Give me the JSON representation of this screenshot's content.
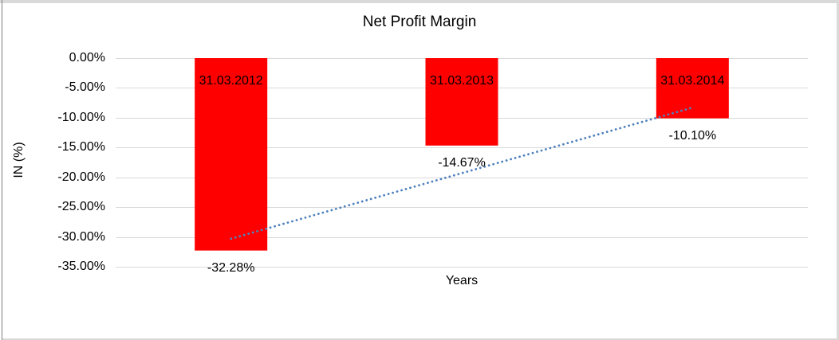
{
  "window": {
    "background": "#ffffff",
    "edge_light": "#d9d9d9",
    "edge_dark": "#7f7f7f"
  },
  "chart_data": {
    "type": "bar",
    "title": "Net Profit Margin",
    "xlabel": "Years",
    "ylabel": "IN (%)",
    "categories": [
      "31.03.2012",
      "31.03.2013",
      "31.03.2014"
    ],
    "values": [
      -32.28,
      -14.67,
      -10.1
    ],
    "value_labels": [
      "-32.28%",
      "-14.67%",
      "-10.10%"
    ],
    "ylim": [
      -35,
      0
    ],
    "ytick_labels": [
      "0.00%",
      "-5.00%",
      "-10.00%",
      "-15.00%",
      "-20.00%",
      "-25.00%",
      "-30.00%",
      "-35.00%"
    ],
    "grid": true,
    "legend": "none",
    "bar_color": "#ff0000",
    "gridline_color": "#d9d9d9",
    "text_color": "#000000",
    "trendline": {
      "type": "linear",
      "style": "dotted",
      "color": "#4f81bd",
      "x_start_category_index": 0,
      "y_start": -30.3,
      "x_end_category_index": 2,
      "y_end": -8.3
    }
  }
}
